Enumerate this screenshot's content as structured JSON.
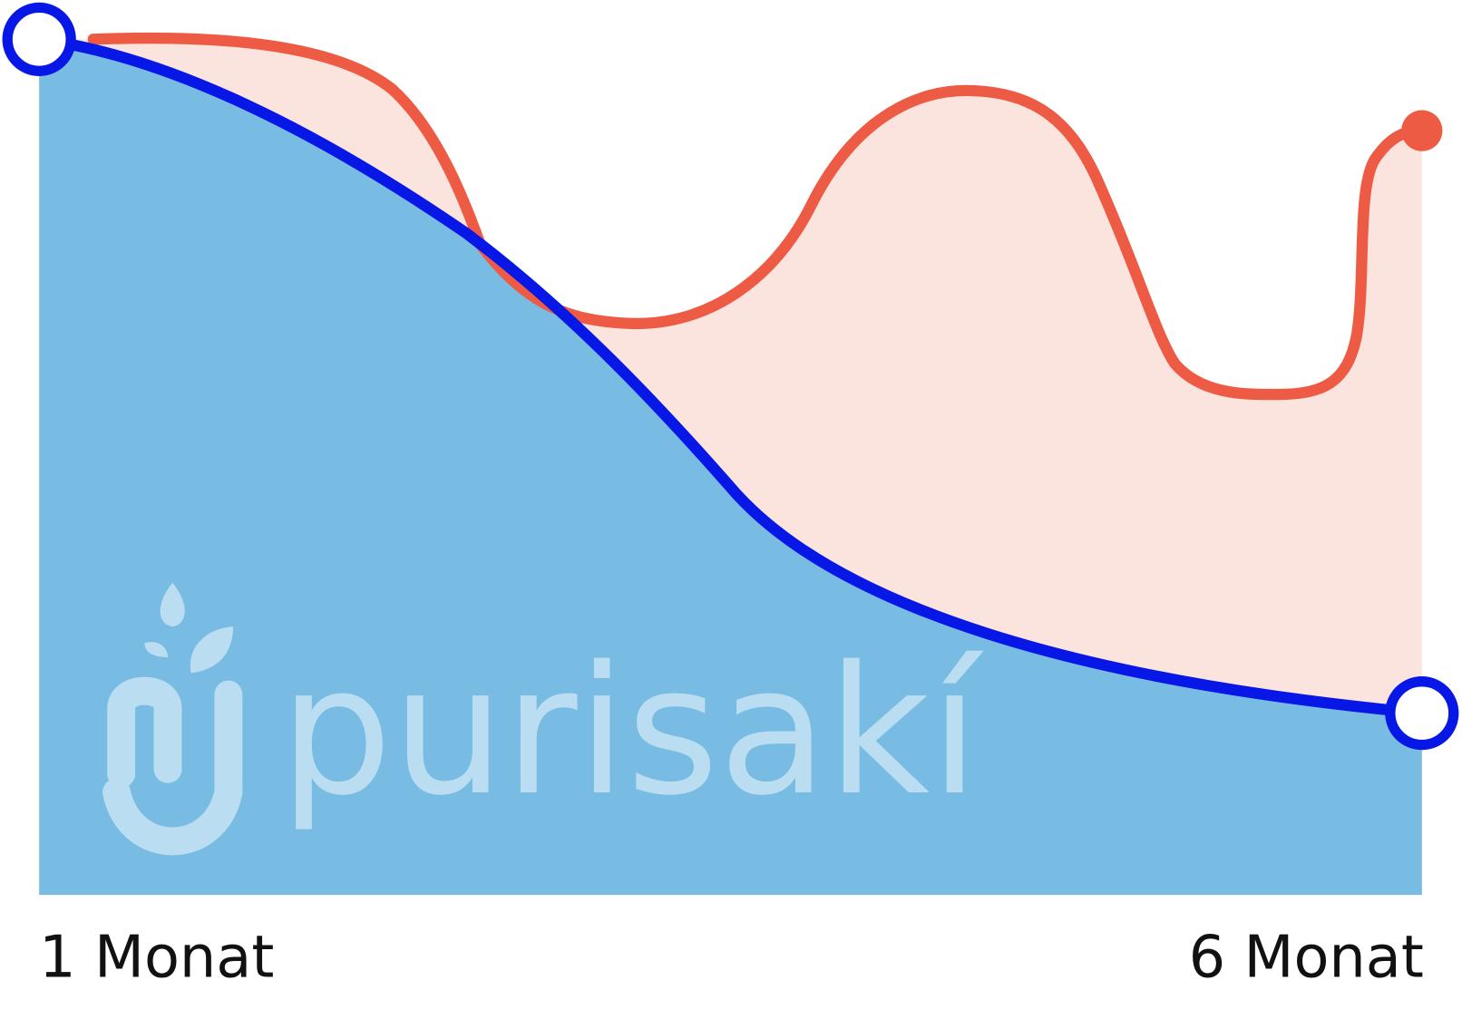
{
  "axis_labels": {
    "start": "1 Monat",
    "end": "6 Monat"
  },
  "watermark": "purisakí"
}
